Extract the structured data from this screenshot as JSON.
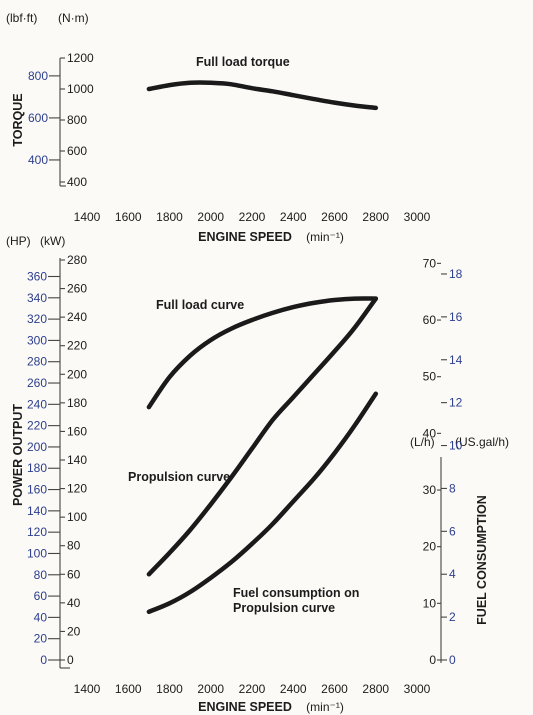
{
  "chart_data": [
    {
      "type": "line",
      "xlabel": "ENGINE SPEED",
      "xlabel_unit": "(min⁻¹)",
      "ylabel": "TORQUE",
      "units": {
        "left": "(lbf·ft)",
        "right": "(N·m)"
      },
      "xlim": [
        1400,
        3000
      ],
      "x_ticks": [
        "1400",
        "1600",
        "1800",
        "2000",
        "2200",
        "2400",
        "2600",
        "2800",
        "3000"
      ],
      "y_ticks_nm": [
        "1200",
        "1000",
        "800",
        "600",
        "400"
      ],
      "y_ticks_lbfft": [
        "800",
        "600",
        "400"
      ],
      "ylim_nm": [
        400,
        1200
      ],
      "series": [
        {
          "name": "Full load torque",
          "x": [
            1700,
            1800,
            1900,
            2000,
            2100,
            2200,
            2300,
            2400,
            2500,
            2600,
            2700,
            2800
          ],
          "y": [
            1000,
            1025,
            1040,
            1040,
            1030,
            1005,
            985,
            960,
            935,
            912,
            893,
            878
          ]
        }
      ]
    },
    {
      "type": "line",
      "xlabel": "ENGINE SPEED",
      "xlabel_unit": "(min⁻¹)",
      "ylabel_left": "POWER OUTPUT",
      "ylabel_right": "FUEL CONSUMPTION",
      "units": {
        "hp": "(HP)",
        "kw": "(kW)",
        "lh": "(L/h)",
        "gal": "(US.gal/h)"
      },
      "xlim": [
        1400,
        3000
      ],
      "x_ticks": [
        "1400",
        "1600",
        "1800",
        "2000",
        "2200",
        "2400",
        "2600",
        "2800",
        "3000"
      ],
      "y_ticks_hp": [
        "360",
        "340",
        "320",
        "300",
        "280",
        "260",
        "240",
        "220",
        "200",
        "180",
        "160",
        "140",
        "120",
        "100",
        "80",
        "60",
        "40",
        "20",
        "0"
      ],
      "y_ticks_kw": [
        "280",
        "260",
        "240",
        "220",
        "200",
        "180",
        "160",
        "140",
        "120",
        "100",
        "80",
        "60",
        "40",
        "20",
        "0"
      ],
      "y_ticks_lh": [
        "70",
        "60",
        "50",
        "40",
        "30",
        "20",
        "10",
        "0"
      ],
      "y_ticks_gal": [
        "18",
        "16",
        "14",
        "12",
        "10",
        "8",
        "6",
        "4",
        "2",
        "0"
      ],
      "ylim_kw": [
        0,
        280
      ],
      "ylim_lh": [
        0,
        70
      ],
      "series": [
        {
          "name": "Full load curve",
          "axis": "kW",
          "x": [
            1700,
            1800,
            1900,
            2000,
            2100,
            2200,
            2300,
            2400,
            2500,
            2600,
            2700,
            2800
          ],
          "y": [
            177,
            198,
            213,
            224,
            232,
            238,
            243,
            247,
            250,
            252,
            253,
            253
          ]
        },
        {
          "name": "Propulsion curve",
          "axis": "kW",
          "x": [
            1700,
            1800,
            1900,
            2000,
            2100,
            2200,
            2300,
            2400,
            2500,
            2600,
            2700,
            2800
          ],
          "y": [
            60,
            75,
            91,
            109,
            128,
            148,
            168,
            184,
            200,
            216,
            233,
            253
          ]
        },
        {
          "name": "Fuel consumption on Propulsion curve",
          "axis": "L/h",
          "x": [
            1700,
            1800,
            1900,
            2000,
            2100,
            2200,
            2300,
            2400,
            2500,
            2600,
            2700,
            2800
          ],
          "y": [
            8.5,
            10.0,
            12.0,
            14.5,
            17.3,
            20.5,
            24.0,
            28.0,
            32.0,
            36.5,
            41.5,
            47.0
          ]
        }
      ]
    }
  ]
}
